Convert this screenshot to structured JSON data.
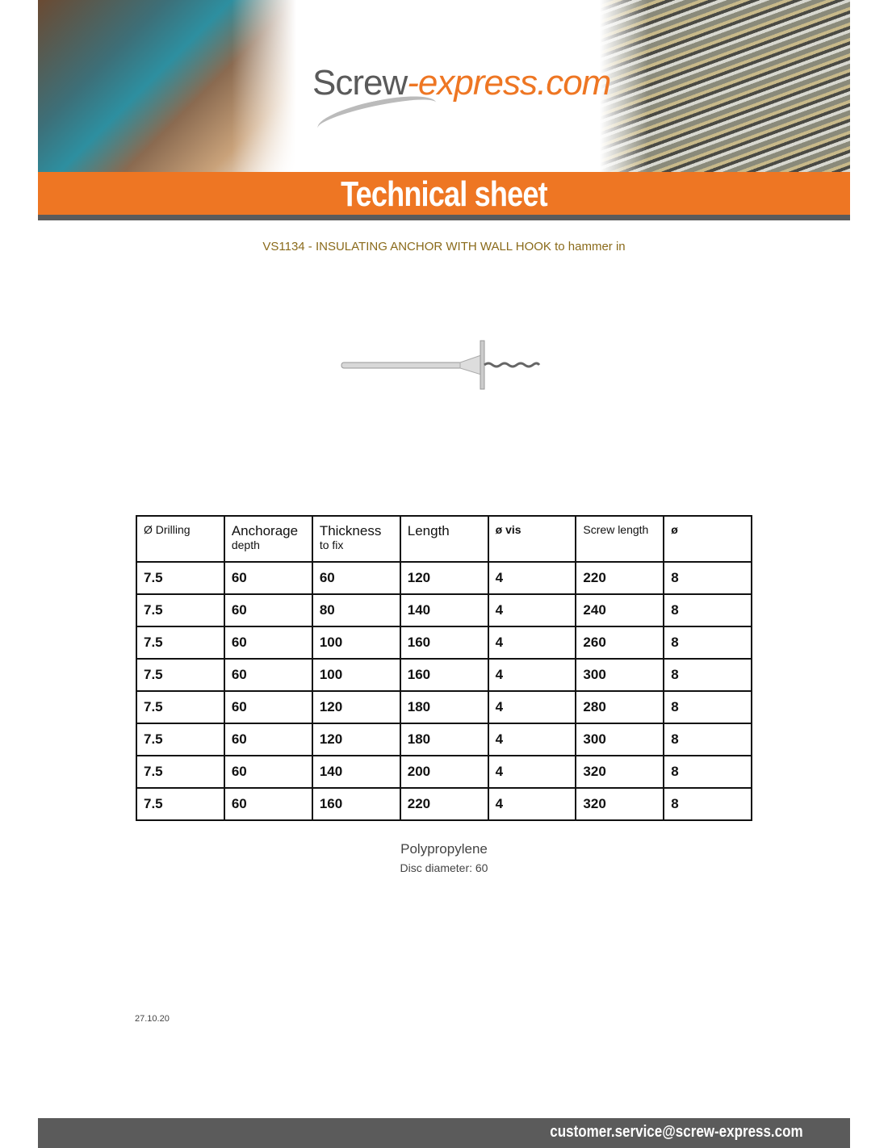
{
  "header": {
    "logo_main": "Screw",
    "logo_accent": "-express.com",
    "banner_title": "Technical sheet"
  },
  "product": {
    "title": "VS1134 - INSULATING ANCHOR WITH WALL HOOK to hammer in",
    "material": "Polypropylene",
    "disc": "Disc diameter: 60"
  },
  "table": {
    "headers": [
      {
        "main": "Ø Drilling",
        "sub": ""
      },
      {
        "main": "Anchorage",
        "sub": "depth"
      },
      {
        "main": "Thickness",
        "sub": "to fix"
      },
      {
        "main": "Length",
        "sub": ""
      },
      {
        "main": "ø vis",
        "sub": ""
      },
      {
        "main": "Screw length",
        "sub": ""
      },
      {
        "main": "ø",
        "sub": ""
      }
    ],
    "rows": [
      [
        "7.5",
        "60",
        "60",
        "120",
        "4",
        "220",
        "8"
      ],
      [
        "7.5",
        "60",
        "80",
        "140",
        "4",
        "240",
        "8"
      ],
      [
        "7.5",
        "60",
        "100",
        "160",
        "4",
        "260",
        "8"
      ],
      [
        "7.5",
        "60",
        "100",
        "160",
        "4",
        "300",
        "8"
      ],
      [
        "7.5",
        "60",
        "120",
        "180",
        "4",
        "280",
        "8"
      ],
      [
        "7.5",
        "60",
        "120",
        "180",
        "4",
        "300",
        "8"
      ],
      [
        "7.5",
        "60",
        "140",
        "200",
        "4",
        "320",
        "8"
      ],
      [
        "7.5",
        "60",
        "160",
        "220",
        "4",
        "320",
        "8"
      ]
    ]
  },
  "date": "27.10.20",
  "footer": {
    "email": "customer.service@screw-express.com"
  },
  "colors": {
    "accent": "#ee7623",
    "bar": "#5b5b5b",
    "title": "#8a6a1a"
  }
}
